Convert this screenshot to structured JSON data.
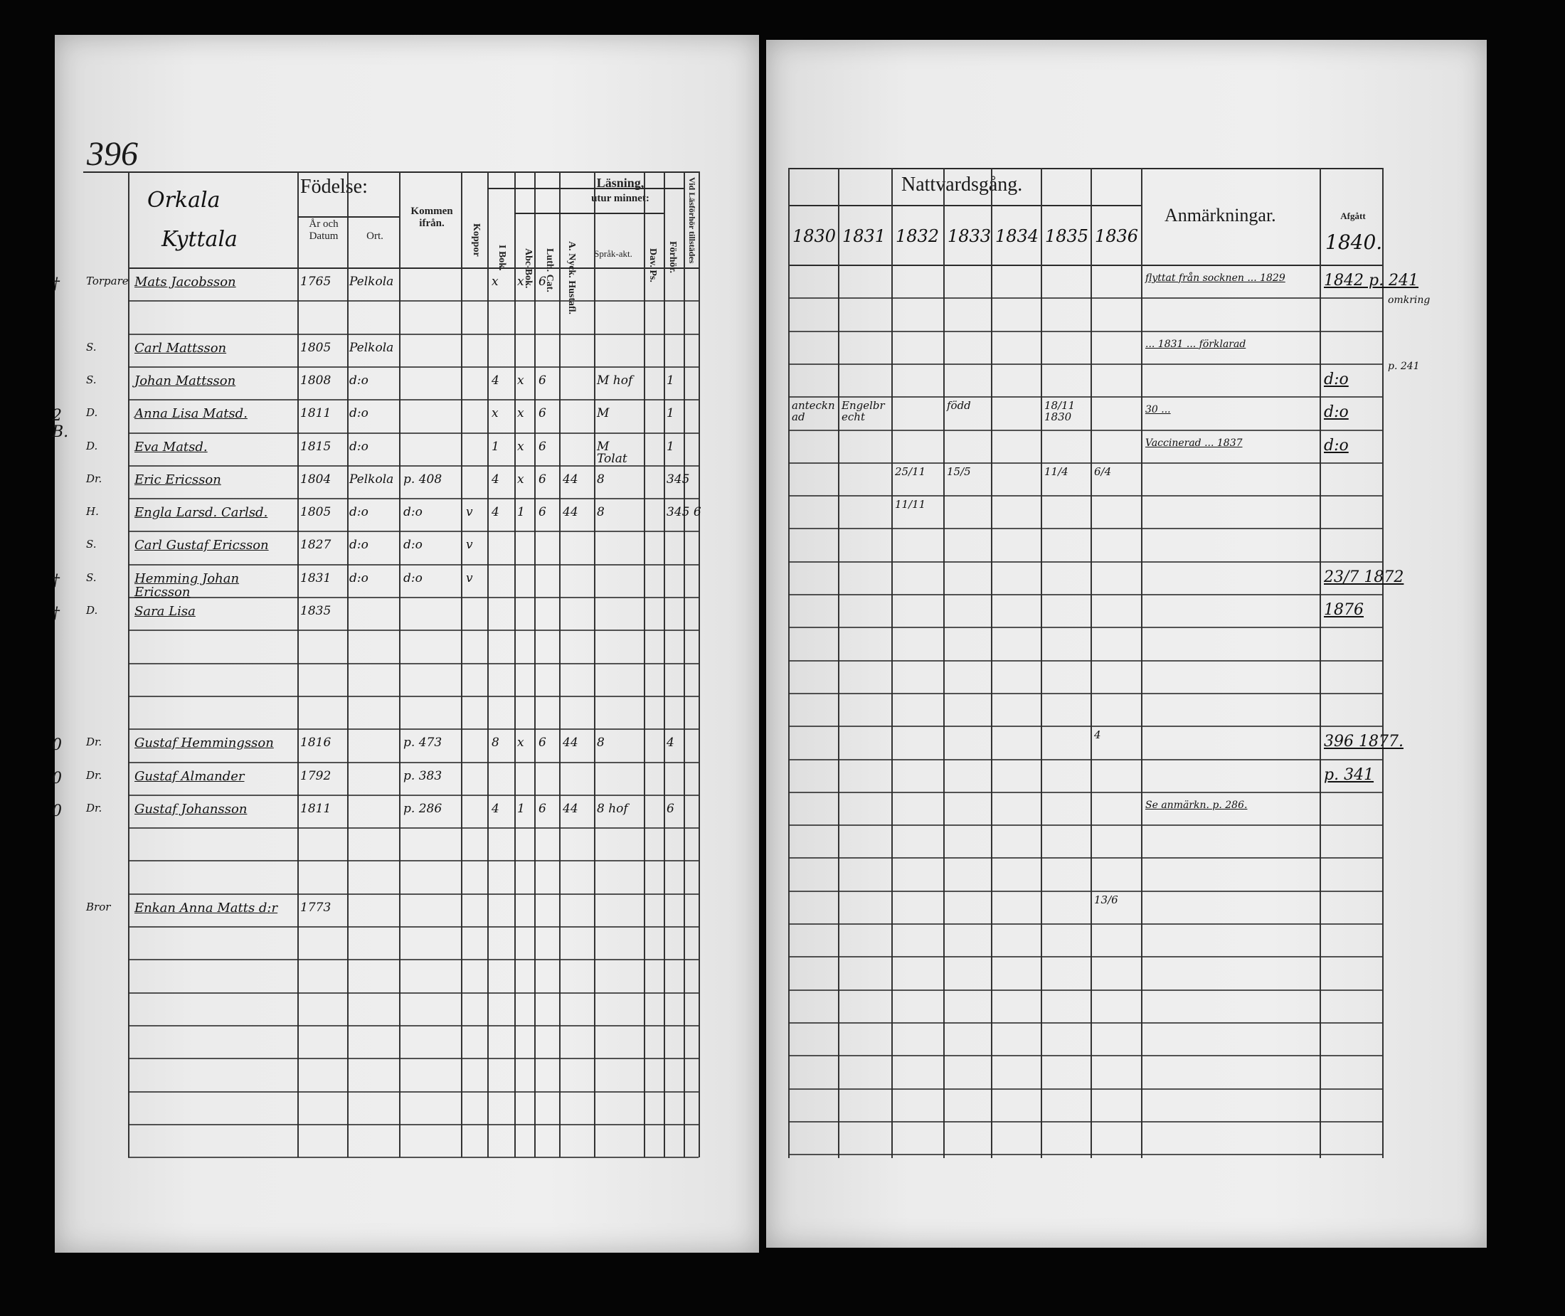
{
  "left": {
    "page_number": "396",
    "parish": "Orkala",
    "village": "Kyttala",
    "headers": {
      "fodelse": "Födelse:",
      "ar_datum": "År och Datum",
      "ort": "Ort.",
      "kommen": "Kommen ifrån.",
      "koppor": "Koppor",
      "lasning": "Läsning,",
      "utur_minnet": "utur minnet:",
      "i_bok": "I Bok.",
      "abc": "Abc-Bok.",
      "luth": "Luth. Cat.",
      "hustafl": "A. Nyck. Hustafl.",
      "sprak": "Språk-akt.",
      "dav": "Dav. Ps.",
      "forhor": "Förhör.",
      "tillstades": "Vid Läsförhör tillstädes"
    },
    "rows": [
      {
        "row": 0,
        "mark": "†",
        "rel": "Torpare",
        "name": "Mats Jacobsson",
        "year": "1765",
        "place": "Pelkola",
        "bok": "x",
        "abc": "x",
        "luth": "6"
      },
      {
        "row": 2,
        "rel": "S.",
        "name": "Carl Mattsson",
        "year": "1805",
        "place": "Pelkola"
      },
      {
        "row": 3,
        "rel": "S.",
        "name": "Johan Mattsson",
        "year": "1808",
        "place": "d:o",
        "bok": "4",
        "abc": "x",
        "luth": "6",
        "sprak": "M hof",
        "forhor": "1"
      },
      {
        "row": 4,
        "mark": "2 B.",
        "rel": "D.",
        "name": "Anna Lisa Matsd.",
        "year": "1811",
        "place": "d:o",
        "bok": "x",
        "abc": "x",
        "luth": "6",
        "sprak": "M",
        "forhor": "1"
      },
      {
        "row": 5,
        "rel": "D.",
        "name": "Eva Matsd.",
        "year": "1815",
        "place": "d:o",
        "bok": "1",
        "abc": "x",
        "luth": "6",
        "sprak": "M Tolat",
        "forhor": "1"
      },
      {
        "row": 6,
        "rel": "Dr.",
        "name": "Eric Ericsson",
        "year": "1804",
        "place": "Pelkola",
        "from": "p. 408",
        "bok": "4",
        "abc": "x",
        "luth": "6",
        "hust": "44",
        "sprak": "8",
        "forhor": "345"
      },
      {
        "row": 7,
        "rel": "H.",
        "name": "Engla Larsd. Carlsd.",
        "year": "1805",
        "place": "d:o",
        "from": "d:o",
        "kopp": "v",
        "bok": "4",
        "abc": "1",
        "luth": "6",
        "hust": "44",
        "sprak": "8",
        "forhor": "345 6"
      },
      {
        "row": 8,
        "rel": "S.",
        "name": "Carl Gustaf Ericsson",
        "year": "1827",
        "place": "d:o",
        "from": "d:o",
        "kopp": "v"
      },
      {
        "row": 9,
        "mark": "†",
        "rel": "S.",
        "name": "Hemming Johan Ericsson",
        "year": "1831",
        "place": "d:o",
        "from": "d:o",
        "kopp": "v"
      },
      {
        "row": 10,
        "mark": "†",
        "rel": "D.",
        "name": "Sara Lisa",
        "year": "1835"
      },
      {
        "row": 14,
        "mark": "0",
        "rel": "Dr.",
        "name": "Gustaf Hemmingsson",
        "year": "1816",
        "from": "p. 473",
        "bok": "8",
        "abc": "x",
        "luth": "6",
        "hust": "44",
        "sprak": "8",
        "forhor": "4"
      },
      {
        "row": 15,
        "mark": "0",
        "rel": "Dr.",
        "name": "Gustaf Almander",
        "year": "1792",
        "from": "p. 383"
      },
      {
        "row": 16,
        "mark": "0",
        "rel": "Dr.",
        "name": "Gustaf Johansson",
        "year": "1811",
        "from": "p. 286",
        "bok": "4",
        "abc": "1",
        "luth": "6",
        "hust": "44",
        "sprak": "8 hof",
        "forhor": "6"
      },
      {
        "row": 19,
        "rel": "Bror",
        "name": "Enkan Anna Matts d:r",
        "year": "1773"
      }
    ]
  },
  "right": {
    "title": "Nattvardsgång.",
    "years": [
      "1830",
      "1831",
      "1832",
      "1833",
      "1834",
      "1835",
      "1836"
    ],
    "anm_header": "Anmärkningar.",
    "afgatt_header": "Afgått",
    "afgatt_year": "1840.",
    "rows": [
      {
        "row": 0,
        "anm": "flyttat från socknen ... 1829",
        "afgatt": "1842 p. 241",
        "margin": "omkring"
      },
      {
        "row": 2,
        "anm": "... 1831 ... förklarad",
        "afgatt": "",
        "margin": "p. 241"
      },
      {
        "row": 3,
        "afgatt": "d:o"
      },
      {
        "row": 4,
        "n": [
          "antecknad",
          "Engelbrecht",
          "",
          "född",
          "",
          "18/11 1830"
        ],
        "anm": "30 ...",
        "afgatt": "d:o"
      },
      {
        "row": 5,
        "anm": "Vaccinerad ... 1837",
        "afgatt": "d:o"
      },
      {
        "row": 6,
        "n": [
          "",
          "",
          "25/11",
          "15/5",
          "",
          "11/4",
          "6/4"
        ]
      },
      {
        "row": 7,
        "n": [
          "",
          "",
          "11/11",
          "",
          "",
          "",
          ""
        ]
      },
      {
        "row": 9,
        "afgatt": "23/7 1872"
      },
      {
        "row": 10,
        "afgatt": "1876"
      },
      {
        "row": 14,
        "n": [
          "",
          "",
          "",
          "",
          "",
          "",
          "4"
        ],
        "afgatt": "396 1877."
      },
      {
        "row": 15,
        "afgatt": "p. 341"
      },
      {
        "row": 16,
        "anm": "Se anmärkn. p. 286."
      },
      {
        "row": 19,
        "n": [
          "",
          "",
          "",
          "",
          "",
          "",
          "13/6"
        ]
      }
    ]
  }
}
